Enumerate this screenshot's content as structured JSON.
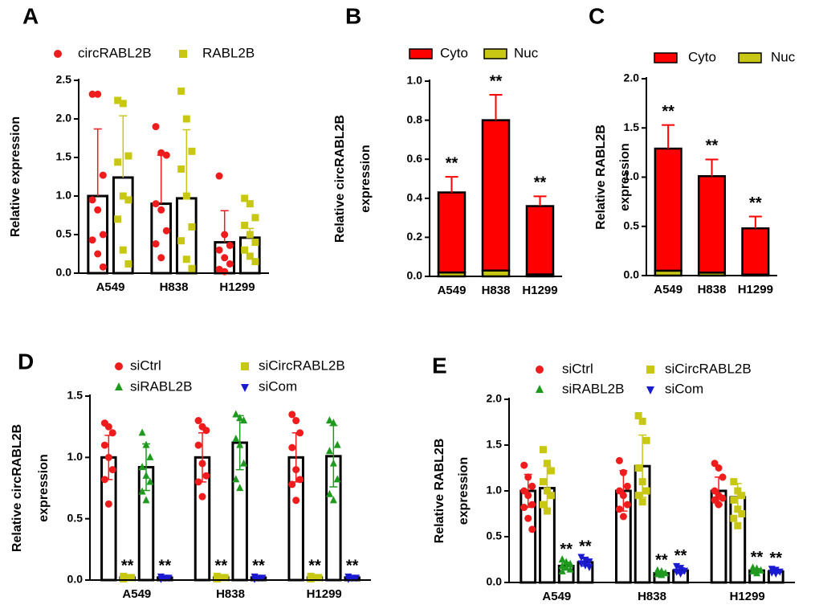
{
  "chart_data": [
    {
      "label": "A",
      "type": "bar",
      "y_label": [
        "Relative expression"
      ],
      "error_direction": "up",
      "categories": [
        "A549",
        "H838",
        "H1299"
      ],
      "ylim": [
        0,
        2.5
      ],
      "yticks": [
        {
          "value": 0,
          "label": "0.0"
        },
        0.5,
        {
          "value": 1,
          "label": "1.0"
        },
        1.5,
        {
          "value": 2,
          "label": "2.0"
        },
        2.5
      ],
      "series": [
        {
          "name": "circRABL2B",
          "color": "#ee1c1c",
          "marker": "circle",
          "values": [
            1.0,
            0.9,
            0.4
          ],
          "errors": [
            0.87,
            0.63,
            0.41
          ],
          "points": [
            [
              2.32,
              2.32,
              1.27,
              0.95,
              0.82,
              0.5,
              0.43,
              0.25,
              0.08
            ],
            [
              1.9,
              1.56,
              1.53,
              0.9,
              0.82,
              0.55,
              0.38,
              0.2
            ],
            [
              1.26,
              0.5,
              0.36,
              0.3,
              0.2,
              0.12,
              0.05,
              0.02
            ]
          ]
        },
        {
          "name": "RABL2B",
          "color": "#c8c814",
          "marker": "square",
          "values": [
            1.24,
            0.97,
            0.46
          ],
          "errors": [
            0.8,
            0.89,
            0.12
          ],
          "points": [
            [
              2.24,
              2.2,
              1.52,
              1.44,
              1.0,
              0.95,
              0.7,
              0.3,
              0.12
            ],
            [
              2.36,
              2.0,
              1.58,
              1.35,
              1.0,
              0.6,
              0.42,
              0.18,
              0.06
            ],
            [
              0.97,
              0.9,
              0.72,
              0.62,
              0.5,
              0.4,
              0.3,
              0.22,
              0.15
            ]
          ]
        }
      ]
    },
    {
      "label": "B",
      "type": "stacked_bar",
      "y_label": [
        "Relative circRABL2B",
        "expression"
      ],
      "categories": [
        "A549",
        "H838",
        "H1299"
      ],
      "ylim": [
        0,
        1.0
      ],
      "yticks": [
        {
          "value": 0,
          "label": "0.0"
        },
        0.2,
        0.4,
        0.6,
        0.8,
        {
          "value": 1,
          "label": "1.0"
        }
      ],
      "series": [
        {
          "name": "Cyto",
          "color": "#ff0000",
          "values": [
            0.41,
            0.77,
            0.35
          ],
          "errors": [
            0.08,
            0.13,
            0.05
          ],
          "annotations": [
            "**",
            "**",
            "**"
          ]
        },
        {
          "name": "Nuc",
          "color": "#c8c814",
          "values": [
            0.02,
            0.03,
            0.01
          ]
        }
      ]
    },
    {
      "label": "C",
      "type": "stacked_bar",
      "y_label": [
        "Relative RABL2B",
        "expression"
      ],
      "categories": [
        "A549",
        "H838",
        "H1299"
      ],
      "ylim": [
        0,
        2.0
      ],
      "yticks": [
        {
          "value": 0,
          "label": "0.0"
        },
        0.5,
        {
          "value": 1,
          "label": "1.0"
        },
        1.5,
        {
          "value": 2,
          "label": "2.0"
        }
      ],
      "series": [
        {
          "name": "Cyto",
          "color": "#ff0000",
          "values": [
            1.24,
            0.98,
            0.47
          ],
          "errors": [
            0.24,
            0.17,
            0.12
          ],
          "annotations": [
            "**",
            "**",
            "**"
          ]
        },
        {
          "name": "Nuc",
          "color": "#c8c814",
          "values": [
            0.05,
            0.03,
            0.01
          ]
        }
      ]
    },
    {
      "label": "D",
      "type": "bar",
      "y_label": [
        "Relative circRABL2B",
        "expression"
      ],
      "error_direction": "both",
      "categories": [
        "A549",
        "H838",
        "H1299"
      ],
      "ylim": [
        0,
        1.5
      ],
      "yticks": [
        {
          "value": 0,
          "label": "0.0"
        },
        0.5,
        {
          "value": 1,
          "label": "1.0"
        },
        1.5
      ],
      "series": [
        {
          "name": "siCtrl",
          "color": "#ee1c1c",
          "marker": "circle",
          "values": [
            1.0,
            1.0,
            1.0
          ],
          "errors": [
            0.18,
            0.2,
            0.2
          ],
          "points": [
            [
              1.28,
              1.25,
              1.2,
              1.1,
              1.0,
              0.9,
              0.82,
              0.62
            ],
            [
              1.3,
              1.25,
              1.22,
              1.1,
              0.95,
              0.85,
              0.8,
              0.68
            ],
            [
              1.35,
              1.3,
              1.2,
              1.08,
              0.9,
              0.82,
              0.78,
              0.65
            ]
          ]
        },
        {
          "name": "siCircRABL2B",
          "color": "#c8c814",
          "marker": "square",
          "values": [
            0.02,
            0.02,
            0.02
          ],
          "errors": [
            0.01,
            0.01,
            0.01
          ],
          "annotations": [
            "**",
            "**",
            "**"
          ],
          "points": [
            [
              0.03,
              0.02,
              0.02,
              0.01
            ],
            [
              0.03,
              0.02,
              0.02,
              0.01
            ],
            [
              0.03,
              0.02,
              0.02,
              0.01
            ]
          ]
        },
        {
          "name": "siRABL2B",
          "color": "#1f9a1f",
          "marker": "triangle",
          "values": [
            0.92,
            1.12,
            1.01
          ],
          "errors": [
            0.19,
            0.22,
            0.25
          ],
          "points": [
            [
              1.2,
              1.1,
              1.0,
              0.92,
              0.85,
              0.8,
              0.72,
              0.65
            ],
            [
              1.35,
              1.32,
              1.3,
              1.15,
              1.1,
              0.95,
              0.82,
              0.75
            ],
            [
              1.3,
              1.28,
              1.1,
              1.05,
              0.95,
              0.82,
              0.7,
              0.65
            ]
          ]
        },
        {
          "name": "siCom",
          "color": "#1a1ad0",
          "marker": "triangle-down",
          "values": [
            0.02,
            0.02,
            0.02
          ],
          "errors": [
            0.01,
            0.01,
            0.01
          ],
          "annotations": [
            "**",
            "**",
            "**"
          ],
          "points": [
            [
              0.03,
              0.02,
              0.02,
              0.01
            ],
            [
              0.03,
              0.02,
              0.02,
              0.01
            ],
            [
              0.03,
              0.02,
              0.02,
              0.01
            ]
          ]
        }
      ]
    },
    {
      "label": "E",
      "type": "bar",
      "y_label": [
        "Relative RABL2B",
        "expression"
      ],
      "error_direction": "both",
      "categories": [
        "A549",
        "H838",
        "H1299"
      ],
      "ylim": [
        0,
        2.0
      ],
      "yticks": [
        {
          "value": 0,
          "label": "0.0"
        },
        0.5,
        {
          "value": 1,
          "label": "1.0"
        },
        1.5,
        {
          "value": 2,
          "label": "2.0"
        }
      ],
      "series": [
        {
          "name": "siCtrl",
          "color": "#ee1c1c",
          "marker": "circle",
          "values": [
            1.0,
            1.0,
            1.0
          ],
          "errors": [
            0.18,
            0.22,
            0.15
          ],
          "points": [
            [
              1.28,
              1.15,
              1.05,
              1.0,
              0.95,
              0.85,
              0.82,
              0.7,
              0.58
            ],
            [
              1.33,
              1.2,
              1.05,
              1.0,
              0.95,
              0.85,
              0.8,
              0.72
            ],
            [
              1.3,
              1.25,
              1.15,
              1.0,
              0.95,
              0.92,
              0.9,
              0.85
            ]
          ]
        },
        {
          "name": "siCircRABL2B",
          "color": "#c8c814",
          "marker": "square",
          "values": [
            1.03,
            1.27,
            0.93
          ],
          "errors": [
            0.24,
            0.34,
            0.15
          ],
          "points": [
            [
              1.45,
              1.3,
              1.22,
              1.1,
              1.0,
              0.95,
              0.85,
              0.78
            ],
            [
              1.82,
              1.76,
              1.55,
              1.25,
              1.1,
              1.0,
              0.95,
              0.88
            ],
            [
              1.1,
              1.0,
              0.95,
              0.9,
              0.8,
              0.75,
              0.7,
              0.62
            ]
          ]
        },
        {
          "name": "siRABL2B",
          "color": "#1f9a1f",
          "marker": "triangle",
          "values": [
            0.18,
            0.1,
            0.13
          ],
          "errors": [
            0.04,
            0.02,
            0.02
          ],
          "annotations": [
            "**",
            "**",
            "**"
          ],
          "points": [
            [
              0.25,
              0.22,
              0.2,
              0.18,
              0.16,
              0.14,
              0.12
            ],
            [
              0.13,
              0.12,
              0.1,
              0.09,
              0.08
            ],
            [
              0.16,
              0.15,
              0.13,
              0.12,
              0.1
            ]
          ]
        },
        {
          "name": "siCom",
          "color": "#1a1ad0",
          "marker": "triangle-down",
          "values": [
            0.22,
            0.13,
            0.12
          ],
          "errors": [
            0.04,
            0.03,
            0.02
          ],
          "annotations": [
            "**",
            "**",
            "**"
          ],
          "points": [
            [
              0.28,
              0.25,
              0.23,
              0.21,
              0.19,
              0.17
            ],
            [
              0.18,
              0.16,
              0.13,
              0.12,
              0.1
            ],
            [
              0.15,
              0.14,
              0.12,
              0.11,
              0.1
            ]
          ]
        }
      ]
    }
  ]
}
